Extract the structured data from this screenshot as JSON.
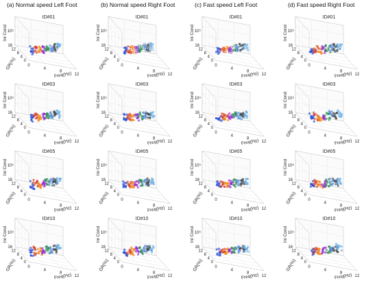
{
  "columns": [
    "(a) Normal speed Left Foot",
    "(b) Normal speed Right Foot",
    "(c) Fast speed Left Foot",
    "(d) Fast speed Right Foot"
  ],
  "rows": [
    "ID#01",
    "ID#03",
    "ID#05",
    "ID#10"
  ],
  "axis_labels": {
    "z": "Ini Cond",
    "y": "GR(%)",
    "x": "Freq(Hz)",
    "z_tick": "10⁵"
  },
  "y_ticks": [
    "16",
    "12",
    "8",
    "4",
    "0"
  ],
  "x_ticks": [
    "0",
    "4",
    "8",
    "12"
  ],
  "colors": {
    "c1": "#2b4fd6",
    "c2": "#d6432b",
    "c3": "#f08a1e",
    "c4": "#9b2bd6",
    "c5": "#2e8b57",
    "c6": "#5a8fd8",
    "c7": "#4a4a4a",
    "c8": "#6ab0e8"
  },
  "chart_data": {
    "type": "scatter",
    "subtype": "3d-scatter-grid",
    "x_label": "Freq(Hz)",
    "y_label": "GR(%)",
    "z_label": "Ini Cond",
    "x_ticks": [
      0,
      4,
      8,
      12
    ],
    "y_ticks": [
      0,
      4,
      8,
      12,
      16
    ],
    "z_tick": "10⁵",
    "series": [
      {
        "color": "#2b4fd6",
        "freq_center": 1.2,
        "gr_center": 2.0
      },
      {
        "color": "#d6432b",
        "freq_center": 2.6,
        "gr_center": 4.0
      },
      {
        "color": "#f08a1e",
        "freq_center": 4.0,
        "gr_center": 6.0
      },
      {
        "color": "#9b2bd6",
        "freq_center": 5.4,
        "gr_center": 8.0
      },
      {
        "color": "#2e8b57",
        "freq_center": 6.8,
        "gr_center": 10.0
      },
      {
        "color": "#5a8fd8",
        "freq_center": 8.2,
        "gr_center": 11.5
      },
      {
        "color": "#4a4a4a",
        "freq_center": 9.4,
        "gr_center": 13.0
      },
      {
        "color": "#6ab0e8",
        "freq_center": 10.6,
        "gr_center": 14.5
      }
    ]
  }
}
